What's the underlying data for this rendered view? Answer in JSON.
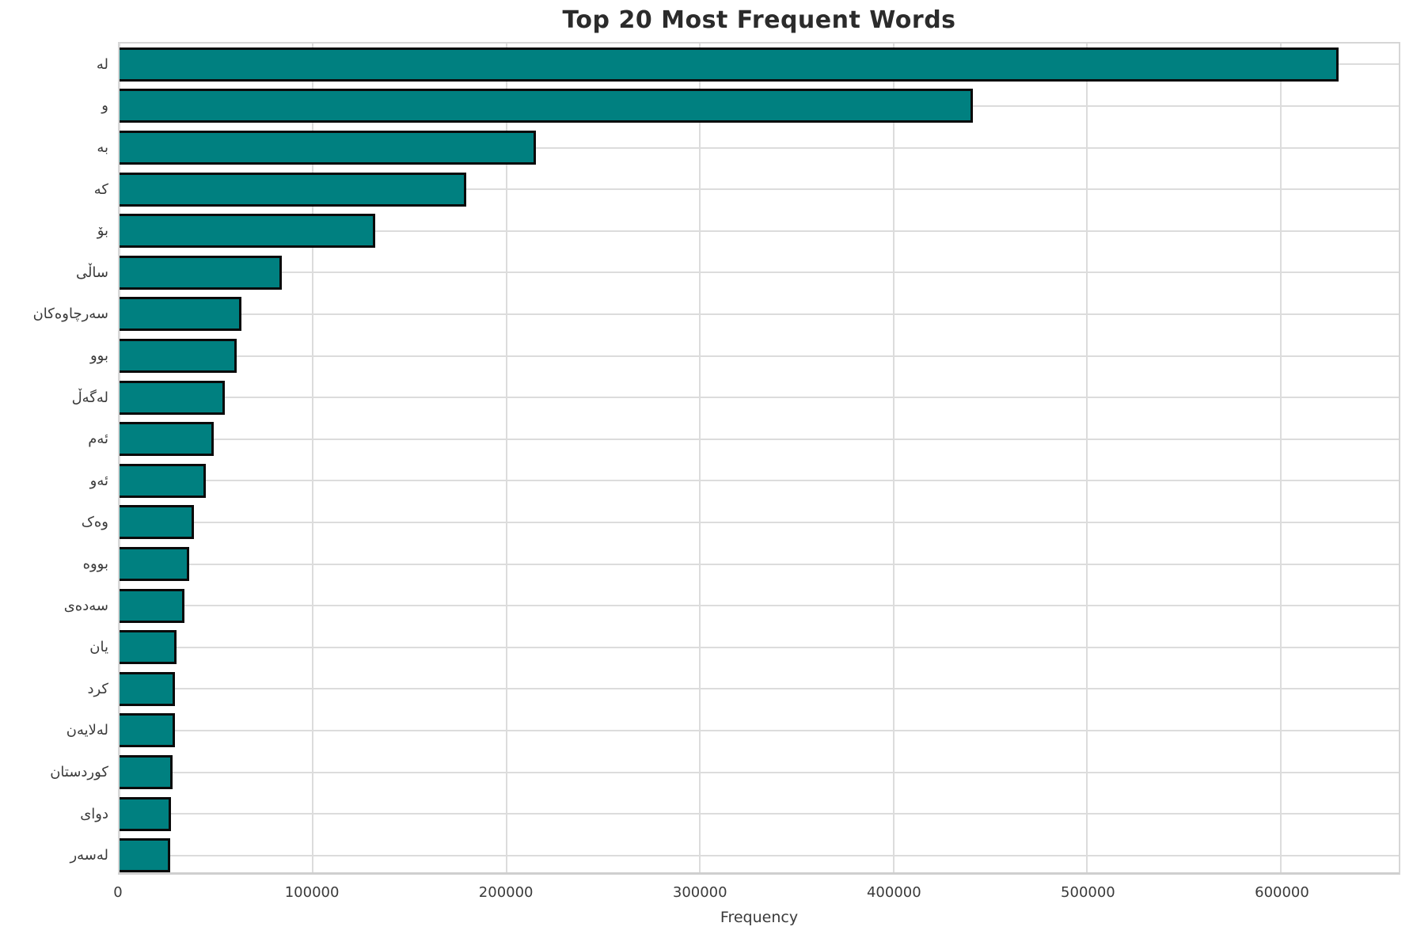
{
  "chart_data": {
    "type": "bar",
    "orientation": "horizontal",
    "title": "Top 20 Most Frequent Words",
    "xlabel": "Frequency",
    "ylabel": "",
    "categories": [
      "لە",
      "و",
      "بە",
      "کە",
      "بۆ",
      "ساڵی",
      "سەرچاوەکان",
      "بوو",
      "لەگەڵ",
      "ئەم",
      "ئەو",
      "وەک",
      "بووە",
      "سەدەی",
      "یان",
      "کرد",
      "لەلایەن",
      "کوردستان",
      "دوای",
      "لەسەر"
    ],
    "values": [
      630000,
      441000,
      215000,
      179000,
      132000,
      84000,
      63000,
      60500,
      54200,
      48800,
      44600,
      38300,
      36000,
      33600,
      29400,
      28800,
      28700,
      27400,
      26600,
      26300
    ],
    "xlim": [
      0,
      661000
    ],
    "xtick_values": [
      0,
      100000,
      200000,
      300000,
      400000,
      500000,
      600000
    ],
    "xtick_labels": [
      "0",
      "100000",
      "200000",
      "300000",
      "400000",
      "500000",
      "600000"
    ],
    "grid": "both",
    "legend_position": "none",
    "bar_color": "#008080",
    "bar_edge_color": "#0a0a0a",
    "grid_color": "#dcdcdc",
    "spine_color": "#d6d6d6",
    "title_color": "#2b2b2b",
    "tick_label_color": "#3a3a3a",
    "background_color": "#ffffff"
  }
}
